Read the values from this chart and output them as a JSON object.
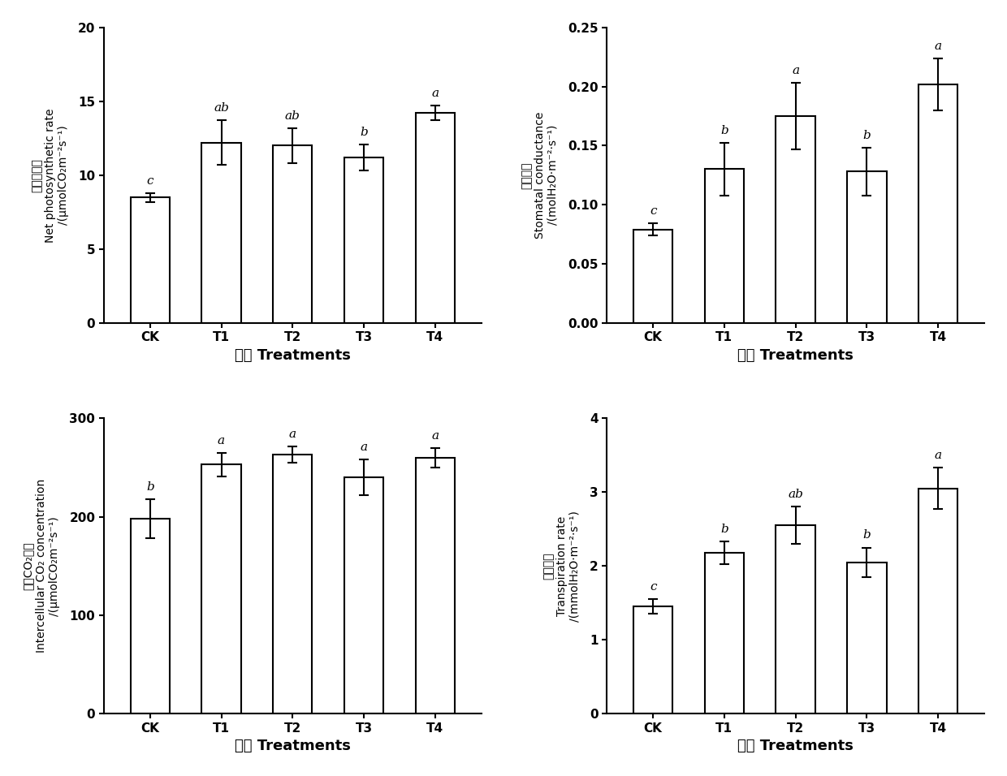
{
  "categories": [
    "CK",
    "T1",
    "T2",
    "T3",
    "T4"
  ],
  "panel1": {
    "values": [
      8.5,
      12.2,
      12.0,
      11.2,
      14.2
    ],
    "errors": [
      0.3,
      1.5,
      1.2,
      0.9,
      0.5
    ],
    "letters": [
      "c",
      "ab",
      "ab",
      "b",
      "a"
    ],
    "ylabel_cn": "净光合速率",
    "ylabel_en": "Net photosynthetic rate",
    "ylabel_unit": "/(μmolCO₂m⁻²s⁻¹)",
    "ylim": [
      0,
      20
    ],
    "yticks": [
      0,
      5,
      10,
      15,
      20
    ]
  },
  "panel2": {
    "values": [
      0.079,
      0.13,
      0.175,
      0.128,
      0.202
    ],
    "errors": [
      0.005,
      0.022,
      0.028,
      0.02,
      0.022
    ],
    "letters": [
      "c",
      "b",
      "a",
      "b",
      "a"
    ],
    "ylabel_cn": "气孔导度",
    "ylabel_en": "Stomatal conductance",
    "ylabel_unit": "/(molH₂O·m⁻²·s⁻¹)",
    "ylim": [
      0.0,
      0.25
    ],
    "yticks": [
      0.0,
      0.05,
      0.1,
      0.15,
      0.2,
      0.25
    ]
  },
  "panel3": {
    "values": [
      198,
      253,
      263,
      240,
      260
    ],
    "errors": [
      20,
      12,
      8,
      18,
      10
    ],
    "letters": [
      "b",
      "a",
      "a",
      "a",
      "a"
    ],
    "ylabel_cn": "胞间CO₂浓度",
    "ylabel_en": "Intercellular CO₂ concentration",
    "ylabel_unit": "/(μmolCO₂m⁻²s⁻¹)",
    "ylim": [
      0,
      300
    ],
    "yticks": [
      0,
      100,
      200,
      300
    ]
  },
  "panel4": {
    "values": [
      1.45,
      2.18,
      2.55,
      2.05,
      3.05
    ],
    "errors": [
      0.1,
      0.15,
      0.25,
      0.2,
      0.28
    ],
    "letters": [
      "c",
      "b",
      "ab",
      "b",
      "a"
    ],
    "ylabel_cn": "蒸腾速率",
    "ylabel_en": "Transpiration rate",
    "ylabel_unit": "/(mmolH₂O·m⁻²·s⁻¹)",
    "ylim": [
      0,
      4
    ],
    "yticks": [
      0,
      1,
      2,
      3,
      4
    ]
  },
  "xlabel_cn": "处理",
  "xlabel_en": "Treatments",
  "bar_color": "white",
  "bar_edgecolor": "black",
  "bar_linewidth": 1.5,
  "bar_width": 0.55,
  "error_capsize": 4,
  "error_linewidth": 1.5,
  "letter_fontsize": 11,
  "ylabel_en_fontsize": 10,
  "ylabel_cn_fontsize": 12,
  "xlabel_fontsize": 13,
  "tick_fontsize": 11
}
